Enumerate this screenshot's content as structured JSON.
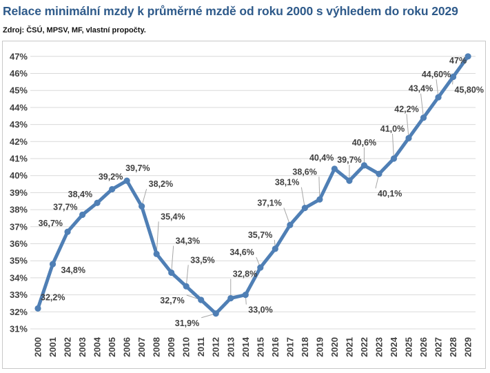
{
  "title": "Relace minimální mzdy k průměrné mzdě od roku 2000 s výhledem do roku 2029",
  "source": "Zdroj: ČSÚ, MPSV, MF, vlastní propočty.",
  "chart_data": {
    "type": "line",
    "title": "Relace minimální mzdy k průměrné mzdě od roku 2000 s výhledem do roku 2029",
    "xlabel": "",
    "ylabel": "",
    "ylim": [
      31,
      47
    ],
    "grid": true,
    "legend": "none",
    "line_color": "#4f7fb5",
    "y_tick_labels": [
      "31%",
      "32%",
      "33%",
      "34%",
      "35%",
      "36%",
      "37%",
      "38%",
      "39%",
      "40%",
      "41%",
      "42%",
      "43%",
      "44%",
      "45%",
      "46%",
      "47%"
    ],
    "categories": [
      "2000",
      "2001",
      "2002",
      "2003",
      "2004",
      "2005",
      "2006",
      "2007",
      "2008",
      "2009",
      "2010",
      "2011",
      "2012",
      "2013",
      "2014",
      "2015",
      "2016",
      "2017",
      "2018",
      "2019",
      "2020",
      "2021",
      "2022",
      "2023",
      "2024",
      "2025",
      "2026",
      "2027",
      "2028",
      "2029"
    ],
    "values": [
      32.2,
      34.8,
      36.7,
      37.7,
      38.4,
      39.2,
      39.7,
      38.2,
      35.4,
      34.3,
      33.5,
      32.7,
      31.9,
      32.8,
      33.0,
      34.6,
      35.7,
      37.1,
      38.1,
      38.6,
      40.4,
      39.7,
      40.6,
      40.1,
      41.0,
      42.2,
      43.4,
      44.6,
      45.8,
      47.0
    ],
    "data_labels": [
      "32,2%",
      "34,8%",
      "36,7%",
      "37,7%",
      "38,4%",
      "39,2%",
      "39,7%",
      "38,2%",
      "35,4%",
      "34,3%",
      "33,5%",
      "32,7%",
      "31,9%",
      "32,8%",
      "33,0%",
      "34,6%",
      "35,7%",
      "37,1%",
      "38,1%",
      "38,6%",
      "40,4%",
      "39,7%",
      "40,6%",
      "40,1%",
      "41,0%",
      "42,2%",
      "43,4%",
      "44,60%",
      "45,80%",
      "47%"
    ]
  }
}
